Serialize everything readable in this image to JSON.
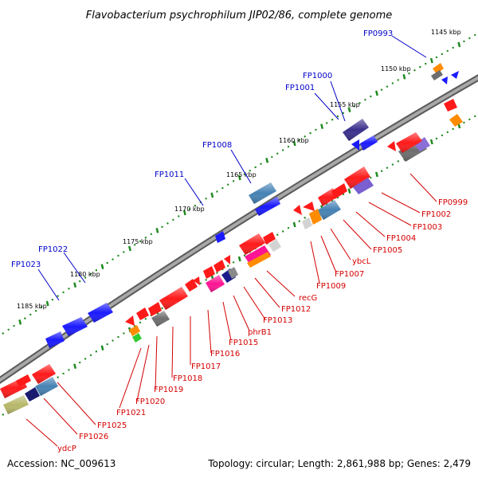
{
  "title": "Flavobacterium psychrophilum JIP02/86, complete genome",
  "footer": {
    "accession": "Accession: NC_009613",
    "summary": "Topology: circular; Length: 2,861,988 bp; Genes: 2,479"
  },
  "scale_labels": [
    "1145 kbp",
    "1150 kbp",
    "1155 kbp",
    "1160 kbp",
    "1165 kbp",
    "1170 kbp",
    "1175 kbp",
    "1180 kbp",
    "1185 kbp"
  ],
  "forward_gene_labels": [
    "FP0993",
    "FP1000",
    "FP1001",
    "FP1008",
    "FP1011",
    "FP1022",
    "FP1023"
  ],
  "reverse_gene_labels": [
    "FP0999",
    "FP1002",
    "FP1003",
    "FP1004",
    "FP1005",
    "ybcL",
    "FP1007",
    "FP1009",
    "recG",
    "FP1012",
    "FP1013",
    "phrB1",
    "FP1015",
    "FP1016",
    "FP1017",
    "FP1018",
    "FP1019",
    "FP1020",
    "FP1021",
    "FP1025",
    "FP1026",
    "ydcP"
  ],
  "colors": {
    "forward_gene": "#1a1aff",
    "reverse_gene": "#ff1a1a",
    "backbone": "#8c8c8c",
    "scale": "#1f8a1f",
    "label_forward": "#0000c8",
    "label_reverse": "#d40000"
  }
}
